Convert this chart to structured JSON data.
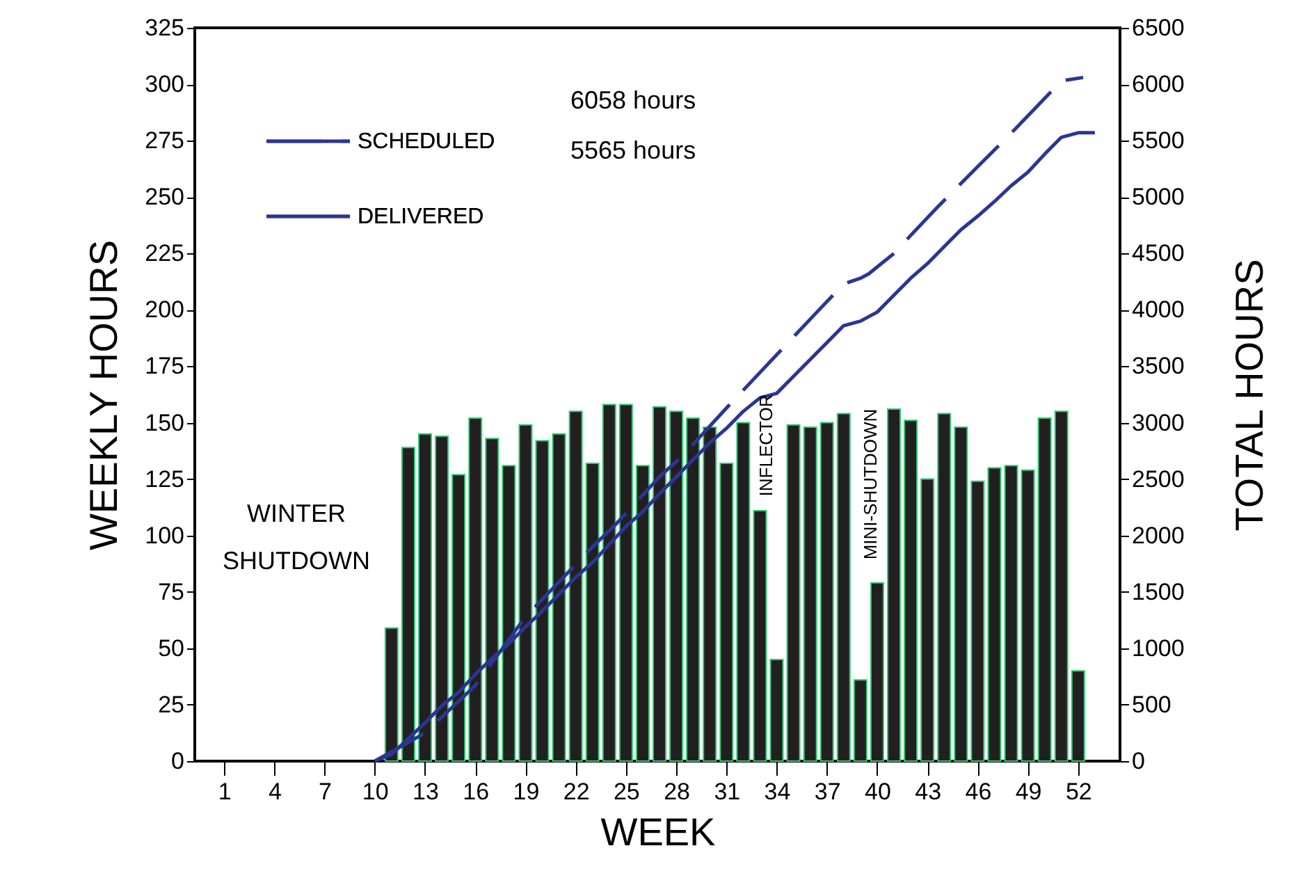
{
  "chart_data": {
    "type": "bar",
    "xlabel": "WEEK",
    "ylabel": "WEEKLY HOURS",
    "y2label": "TOTAL HOURS",
    "x": [
      11,
      12,
      13,
      14,
      15,
      16,
      17,
      18,
      19,
      20,
      21,
      22,
      23,
      24,
      25,
      26,
      27,
      28,
      29,
      30,
      31,
      32,
      33,
      34,
      35,
      36,
      37,
      38,
      39,
      40,
      41,
      42,
      43,
      44,
      45,
      46,
      47,
      48,
      49,
      50,
      51,
      52
    ],
    "xlim": [
      -0.75,
      54.5
    ],
    "xticks": [
      1,
      4,
      7,
      10,
      13,
      16,
      19,
      22,
      25,
      28,
      31,
      34,
      37,
      40,
      43,
      46,
      49,
      52
    ],
    "ylim": [
      0,
      325
    ],
    "yticks": [
      0,
      25,
      50,
      75,
      100,
      125,
      150,
      175,
      200,
      225,
      250,
      275,
      300,
      325
    ],
    "y2lim": [
      0,
      6500
    ],
    "y2ticks": [
      0,
      500,
      1000,
      1500,
      2000,
      2500,
      3000,
      3500,
      4000,
      4500,
      5000,
      5500,
      6000,
      6500
    ],
    "series": [
      {
        "color": "#231f20",
        "values": [
          59,
          139,
          145,
          144,
          127,
          152,
          143,
          131,
          149,
          142,
          145,
          155,
          132,
          158,
          158,
          131,
          157,
          155,
          152,
          148,
          132,
          150,
          111,
          45,
          149,
          148,
          150,
          154,
          36,
          79,
          156,
          151,
          125,
          154,
          148,
          124,
          130,
          131,
          129,
          152,
          155,
          40
        ]
      },
      {
        "name": "SCHEDULED",
        "type": "line",
        "axis": "y2",
        "color": "#2b3595",
        "line_style": "dashed",
        "x": [
          10,
          13,
          16,
          19,
          20.3,
          23,
          24.4,
          27,
          28.4,
          31,
          35,
          36.4,
          38,
          39,
          39.5,
          41,
          42,
          43.6,
          45,
          46,
          47.7,
          49,
          51,
          52.3
        ],
        "values": [
          0,
          250,
          670,
          1280,
          1480,
          1900,
          2100,
          2520,
          2710,
          3130,
          3760,
          3980,
          4230,
          4280,
          4320,
          4500,
          4660,
          4910,
          5120,
          5270,
          5520,
          5720,
          6030,
          6060
        ]
      },
      {
        "name": "DELIVERED",
        "type": "line",
        "axis": "y2",
        "color": "#2b3595",
        "line_style": "solid",
        "x": [
          10,
          11,
          12,
          13,
          14,
          15,
          16,
          17,
          18,
          19,
          20,
          21,
          22,
          23,
          24,
          25,
          26,
          27,
          28,
          29,
          30,
          31,
          32,
          33,
          34,
          35,
          36,
          37,
          38,
          39,
          40,
          41,
          42,
          43,
          44,
          45,
          46,
          47,
          48,
          49,
          50,
          51,
          52,
          53
        ],
        "values": [
          0,
          60,
          200,
          340,
          490,
          610,
          770,
          910,
          1040,
          1190,
          1330,
          1480,
          1630,
          1760,
          1920,
          2080,
          2210,
          2370,
          2520,
          2670,
          2820,
          2950,
          3100,
          3220,
          3260,
          3410,
          3560,
          3710,
          3860,
          3900,
          3980,
          4130,
          4280,
          4410,
          4560,
          4710,
          4830,
          4960,
          5100,
          5220,
          5380,
          5530,
          5570,
          5570
        ]
      }
    ],
    "legend": "top left",
    "grid": false,
    "annotations": [
      "6058 hours",
      "5565 hours",
      "WINTER\nSHUTDOWN",
      "INFLECTOR",
      "MINI-SHUTDOWN"
    ]
  }
}
